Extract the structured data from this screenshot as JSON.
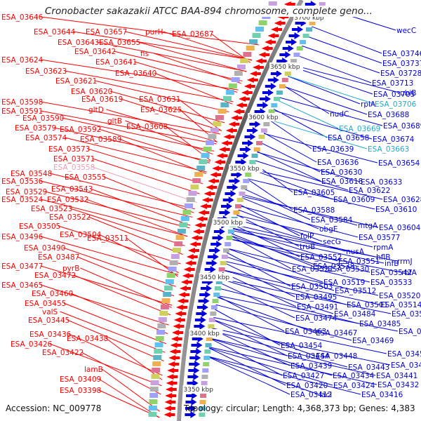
{
  "header": {
    "title": "Cronobacter sakazakii ATCC BAA-894 chromosome, complete geno..."
  },
  "footer": {
    "accession": "Accession: NC_009778",
    "topology": "Topology: circular; Length: 4,368,373 bp; Genes: 4,383"
  },
  "colors": {
    "reverse_strand": "#ff0000",
    "forward_strand": "#0000dd",
    "rna_genes": "#22aacc",
    "pseudo_gene": "#f0a0b0",
    "backbone": "#888888"
  },
  "ruler": {
    "ticks": [
      "3700 kbp",
      "3650 kbp",
      "3600 kbp",
      "3550 kbp",
      "3500 kbp",
      "3450 kbp",
      "3400 kbp",
      "3350 kbp"
    ]
  },
  "labels_left": [
    {
      "text": "ESA_03646"
    },
    {
      "text": "ESA_03644"
    },
    {
      "text": "ESA_03657"
    },
    {
      "text": "purH"
    },
    {
      "text": "ESA_03687"
    },
    {
      "text": "ESA_03643"
    },
    {
      "text": "ESA_03655"
    },
    {
      "text": "ESA_03642"
    },
    {
      "text": "fis"
    },
    {
      "text": "ESA_03624"
    },
    {
      "text": "ESA_03641"
    },
    {
      "text": "ESA_03623"
    },
    {
      "text": "ESA_03640"
    },
    {
      "text": "ESA_03621"
    },
    {
      "text": "ESA_03620"
    },
    {
      "text": "ESA_03619"
    },
    {
      "text": "ESA_03631"
    },
    {
      "text": "ESA_03598"
    },
    {
      "text": "gltD"
    },
    {
      "text": "ESA_03625"
    },
    {
      "text": "ESA_03591"
    },
    {
      "text": "ESA_03590"
    },
    {
      "text": "gltB"
    },
    {
      "text": "ESA_03579"
    },
    {
      "text": "ESA_03592"
    },
    {
      "text": "ESA_03608"
    },
    {
      "text": "ESA_03574"
    },
    {
      "text": "ESA_03589"
    },
    {
      "text": "ESA_03573"
    },
    {
      "text": "ESA_03571"
    },
    {
      "text": "ESA_03558"
    },
    {
      "text": "ESA_03548"
    },
    {
      "text": "ESA_03555"
    },
    {
      "text": "ESA_03536"
    },
    {
      "text": "ESA_03529"
    },
    {
      "text": "ESA_03543"
    },
    {
      "text": "ESA_03524"
    },
    {
      "text": "ESA_03532"
    },
    {
      "text": "ESA_03523"
    },
    {
      "text": "ESA_03522"
    },
    {
      "text": "ESA_03505"
    },
    {
      "text": "ESA_03496"
    },
    {
      "text": "ESA_03504"
    },
    {
      "text": "ESA_03511"
    },
    {
      "text": "ESA_03490"
    },
    {
      "text": "ESA_03487"
    },
    {
      "text": "ESA_03477"
    },
    {
      "text": "pyrB"
    },
    {
      "text": "ESA_03472"
    },
    {
      "text": "ESA_03465"
    },
    {
      "text": "ESA_03460"
    },
    {
      "text": "ESA_03455"
    },
    {
      "text": "valS"
    },
    {
      "text": "ESA_03445"
    },
    {
      "text": "ESA_03436"
    },
    {
      "text": "ESA_03438"
    },
    {
      "text": "ESA_03426"
    },
    {
      "text": "ESA_03422"
    },
    {
      "text": "lamB"
    },
    {
      "text": "ESA_03409"
    },
    {
      "text": "ESA_03398"
    }
  ],
  "labels_right": [
    {
      "text": "wecC"
    },
    {
      "text": "ESA_03746"
    },
    {
      "text": "ESA_03737"
    },
    {
      "text": "ESA_03728"
    },
    {
      "text": "ESA_03713"
    },
    {
      "text": "ESA_03705"
    },
    {
      "text": "ubiB"
    },
    {
      "text": "rplA"
    },
    {
      "text": "ESA_03706"
    },
    {
      "text": "nudC"
    },
    {
      "text": "ESA_03688"
    },
    {
      "text": "ESA_03669"
    },
    {
      "text": "ESA_03689"
    },
    {
      "text": "ESA_03658"
    },
    {
      "text": "ESA_03674"
    },
    {
      "text": "ESA_03639"
    },
    {
      "text": "ESA_03663"
    },
    {
      "text": "ESA_03636"
    },
    {
      "text": "ESA_03654"
    },
    {
      "text": "ESA_03630"
    },
    {
      "text": "ESA_03618"
    },
    {
      "text": "ESA_03633"
    },
    {
      "text": "ESA_03605"
    },
    {
      "text": "ESA_03622"
    },
    {
      "text": "ESA_03609"
    },
    {
      "text": "ESA_03628"
    },
    {
      "text": "ESA_03610"
    },
    {
      "text": "ESA_03588"
    },
    {
      "text": "ESA_03584"
    },
    {
      "text": "mtgA"
    },
    {
      "text": "ESA_03604"
    },
    {
      "text": "obgE"
    },
    {
      "text": "folP"
    },
    {
      "text": "ESA_03577"
    },
    {
      "text": "truB"
    },
    {
      "text": "secG"
    },
    {
      "text": "rpmA"
    },
    {
      "text": "ESA_03552"
    },
    {
      "text": "nusA"
    },
    {
      "text": "hflB"
    },
    {
      "text": "ESA_03538"
    },
    {
      "text": "ESA_03551"
    },
    {
      "text": "infB"
    },
    {
      "text": "rrmJ"
    },
    {
      "text": "ESA_03521"
    },
    {
      "text": "ESA_03530"
    },
    {
      "text": "ESA_03542"
    },
    {
      "text": "rbfA"
    },
    {
      "text": "ESA_03519"
    },
    {
      "text": "ESA_03533"
    },
    {
      "text": "ESA_03503"
    },
    {
      "text": "ESA_03512"
    },
    {
      "text": "ESA_03495"
    },
    {
      "text": "ESA_03520"
    },
    {
      "text": "ESA_03491"
    },
    {
      "text": "ESA_03501"
    },
    {
      "text": "ESA_03514"
    },
    {
      "text": "ESA_03484"
    },
    {
      "text": "ESA_03502"
    },
    {
      "text": "ESA_03474"
    },
    {
      "text": "ESA_03485"
    },
    {
      "text": "ESA_03463"
    },
    {
      "text": "ESA_03467"
    },
    {
      "text": "ESA_03488"
    },
    {
      "text": "ESA_03469"
    },
    {
      "text": "ESA_03454"
    },
    {
      "text": "ESA_03444"
    },
    {
      "text": "ESA_03448"
    },
    {
      "text": "ESA_03458"
    },
    {
      "text": "ESA_03439"
    },
    {
      "text": "ESA_03443"
    },
    {
      "text": "ESA_03450"
    },
    {
      "text": "ESA_03427"
    },
    {
      "text": "ESA_03434"
    },
    {
      "text": "ESA_03441"
    },
    {
      "text": "ESA_03420"
    },
    {
      "text": "ESA_03424"
    },
    {
      "text": "ESA_03432"
    },
    {
      "text": "ESA_03412"
    },
    {
      "text": "lacI"
    },
    {
      "text": "ESA_03416"
    }
  ]
}
